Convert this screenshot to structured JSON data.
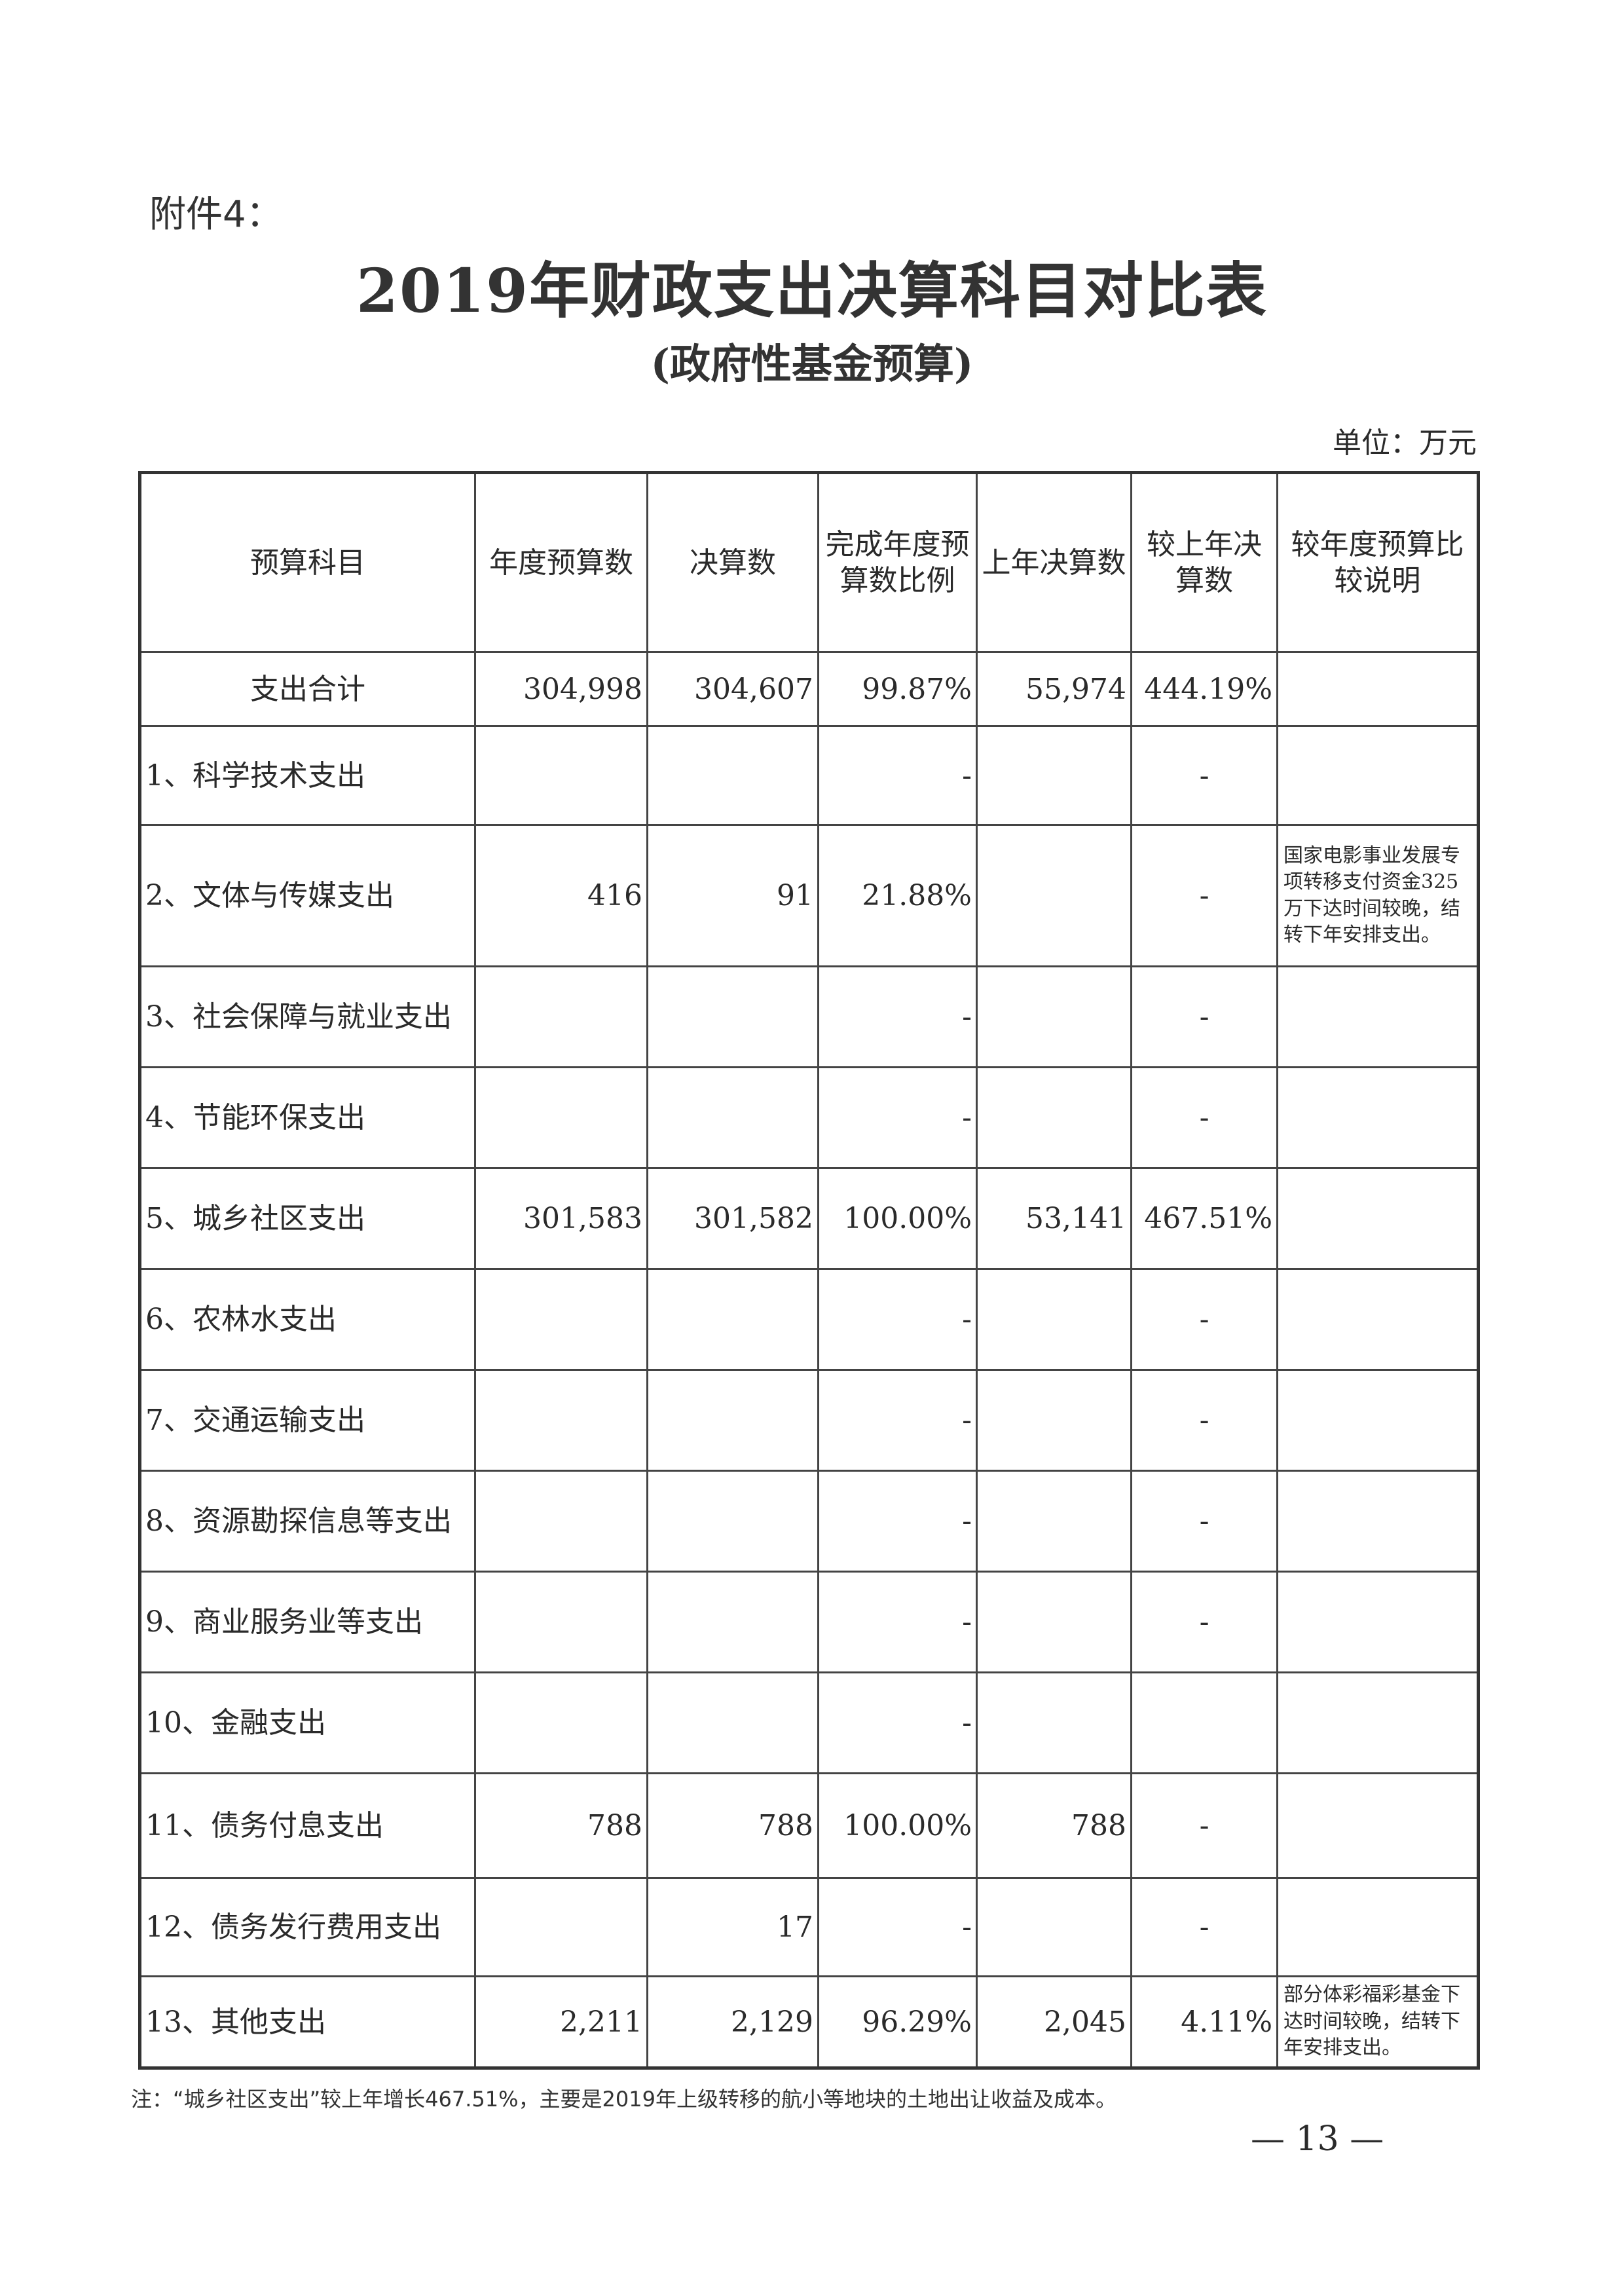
{
  "attachment_label": "附件4：",
  "title": "2019年财政支出决算科目对比表",
  "subtitle": "(政府性基金预算)",
  "unit": "单位：万元",
  "table": {
    "headers": [
      "预算科目",
      "年度预算数",
      "决算数",
      "完成年度预算数比例",
      "上年决算数",
      "较上年决算数",
      "较年度预算比较说明"
    ],
    "rows": [
      {
        "item": "支出合计",
        "budget": "304,998",
        "final": "304,607",
        "ratio": "99.87%",
        "last": "55,974",
        "yoy": "444.19%",
        "note": ""
      },
      {
        "item": "1、科学技术支出",
        "budget": "",
        "final": "",
        "ratio": "-",
        "last": "",
        "yoy": "-",
        "note": ""
      },
      {
        "item": "2、文体与传媒支出",
        "budget": "416",
        "final": "91",
        "ratio": "21.88%",
        "last": "",
        "yoy": "-",
        "note": "国家电影事业发展专项转移支付资金325万下达时间较晚，结转下年安排支出。"
      },
      {
        "item": "3、社会保障与就业支出",
        "budget": "",
        "final": "",
        "ratio": "-",
        "last": "",
        "yoy": "-",
        "note": ""
      },
      {
        "item": "4、节能环保支出",
        "budget": "",
        "final": "",
        "ratio": "-",
        "last": "",
        "yoy": "-",
        "note": ""
      },
      {
        "item": "5、城乡社区支出",
        "budget": "301,583",
        "final": "301,582",
        "ratio": "100.00%",
        "last": "53,141",
        "yoy": "467.51%",
        "note": ""
      },
      {
        "item": "6、农林水支出",
        "budget": "",
        "final": "",
        "ratio": "-",
        "last": "",
        "yoy": "-",
        "note": ""
      },
      {
        "item": "7、交通运输支出",
        "budget": "",
        "final": "",
        "ratio": "-",
        "last": "",
        "yoy": "-",
        "note": ""
      },
      {
        "item": "8、资源勘探信息等支出",
        "budget": "",
        "final": "",
        "ratio": "-",
        "last": "",
        "yoy": "-",
        "note": ""
      },
      {
        "item": "9、商业服务业等支出",
        "budget": "",
        "final": "",
        "ratio": "-",
        "last": "",
        "yoy": "-",
        "note": ""
      },
      {
        "item": "10、金融支出",
        "budget": "",
        "final": "",
        "ratio": "-",
        "last": "",
        "yoy": "",
        "note": ""
      },
      {
        "item": "11、债务付息支出",
        "budget": "788",
        "final": "788",
        "ratio": "100.00%",
        "last": "788",
        "yoy": "-",
        "note": ""
      },
      {
        "item": "12、债务发行费用支出",
        "budget": "",
        "final": "17",
        "ratio": "-",
        "last": "",
        "yoy": "-",
        "note": ""
      },
      {
        "item": "13、其他支出",
        "budget": "2,211",
        "final": "2,129",
        "ratio": "96.29%",
        "last": "2,045",
        "yoy": "4.11%",
        "note": "部分体彩福彩基金下达时间较晚，结转下年安排支出。"
      }
    ]
  },
  "footnote": "注：“城乡社区支出”较上年增长467.51%，主要是2019年上级转移的航小等地块的土地出让收益及成本。",
  "page_number": "— 13 —"
}
